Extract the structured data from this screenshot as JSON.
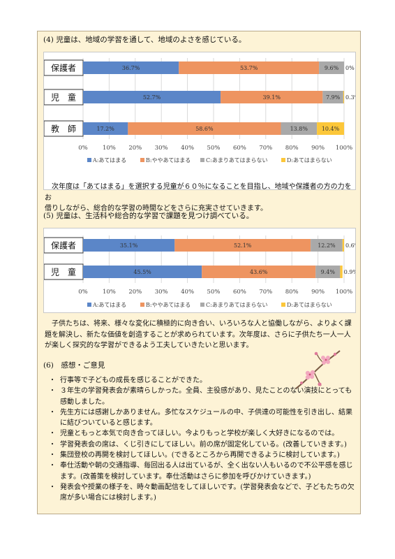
{
  "section4": {
    "heading": "(4) 児童は、地域の学習を通して、地域のよさを感じている。",
    "chart_data": {
      "type": "bar",
      "stacked": true,
      "orientation": "horizontal",
      "categories": [
        "保護者",
        "児　童",
        "教　師"
      ],
      "series": [
        {
          "name": "A:あてはまる",
          "values": [
            36.7,
            52.7,
            17.2
          ],
          "labels": [
            "36.7%",
            "52.7%",
            "17.2%"
          ]
        },
        {
          "name": "B:ややあてはまる",
          "values": [
            53.7,
            39.1,
            58.6
          ],
          "labels": [
            "53.7%",
            "39.1%",
            "58.6%"
          ]
        },
        {
          "name": "C:あまりあてはまらない",
          "values": [
            9.6,
            7.9,
            13.8
          ],
          "labels": [
            "9.6%",
            "7.9%",
            "13.8%"
          ]
        },
        {
          "name": "D:あてはまらない",
          "values": [
            0,
            0.3,
            10.4
          ],
          "labels": [
            "0%",
            "0.3%",
            "10.4%"
          ]
        }
      ],
      "xlim": [
        0,
        100
      ],
      "ticks": [
        "0%",
        "10%",
        "20%",
        "30%",
        "40%",
        "50%",
        "60%",
        "70%",
        "80%",
        "90%",
        "100%"
      ],
      "legend": "bottom",
      "grid": true,
      "colors": [
        "#5b86c8",
        "#ee9460",
        "#a9a9a9",
        "#fcc73a"
      ]
    },
    "paragraph": [
      "次年度は「あてはまる」を選択する児童が６０％になることを目指し、地域や保護者の方の力をお",
      "借りしながら、総合的な学習の時間などをさらに充実させていきます。"
    ]
  },
  "section5": {
    "heading": "(5) 児童は、生活科や総合的な学習で課題を見つけ調べている。",
    "chart_data": {
      "type": "bar",
      "stacked": true,
      "orientation": "horizontal",
      "categories": [
        "保護者",
        "児　童"
      ],
      "series": [
        {
          "name": "A:あてはまる",
          "values": [
            35.1,
            45.5
          ],
          "labels": [
            "35.1%",
            "45.5%"
          ]
        },
        {
          "name": "B:ややあてはまる",
          "values": [
            52.1,
            43.6
          ],
          "labels": [
            "52.1%",
            "43.6%"
          ]
        },
        {
          "name": "C:あまりあてはまらない",
          "values": [
            12.2,
            9.4
          ],
          "labels": [
            "12.2%",
            "9.4%"
          ]
        },
        {
          "name": "D:あてはまらない",
          "values": [
            0.6,
            0.9
          ],
          "labels": [
            "0.6%",
            "0.9%"
          ]
        }
      ],
      "xlim": [
        0,
        100
      ],
      "ticks": [
        "0%",
        "10%",
        "20%",
        "30%",
        "40%",
        "50%",
        "60%",
        "70%",
        "80%",
        "90%",
        "100%"
      ],
      "legend": "bottom",
      "grid": true,
      "colors": [
        "#5b86c8",
        "#ee9460",
        "#a9a9a9",
        "#fcc73a"
      ]
    },
    "paragraph": [
      "子供たちは、将来、様々な変化に積極的に向き合い、いろいろな人と協働しながら、よりよく課",
      "題を解決し、新たな価値を創造することが求められています。次年度は、さらに子供たち一人一人",
      "が楽しく探究的な学習ができるよう工夫していきたいと思います。"
    ]
  },
  "section6": {
    "heading": "(6)　感想・ご意見",
    "bullet": "・",
    "items": [
      [
        "行事等で子どもの成長を感じることができた。"
      ],
      [
        "３年生の学習発表会が素晴らしかった。全員、主役感があり、見たことのない演技にとっても",
        "感動しました。"
      ],
      [
        "先生方には感謝しかありません。多忙なスケジュールの中、子供達の可能性を引き出し、結果",
        "に結びついていると感じます。"
      ],
      [
        "児童ともっと本気で向き合ってほしい。今よりもっと学校が楽しく大好きになるのでは。"
      ],
      [
        "学習発表会の席は、くじ引きにしてほしい。前の席が固定化している。(改善していきます。)"
      ],
      [
        "集団登校の再開を検討してほしい。(できるところから再開できるように検討しています。)"
      ],
      [
        "奉仕活動や朝の交通指導、毎回出る人は出ているが、全く出ない人もいるので不公平感を感じ",
        "ます。(改善策を検討しています。奉仕活動はさらに参加を呼びかけていきます。)"
      ],
      [
        "発表会や授業の様子を、時々動画配信をしてほしいです。(学習発表会などで、子どもたちの欠",
        "席が多い場合には検討します。)"
      ]
    ]
  }
}
